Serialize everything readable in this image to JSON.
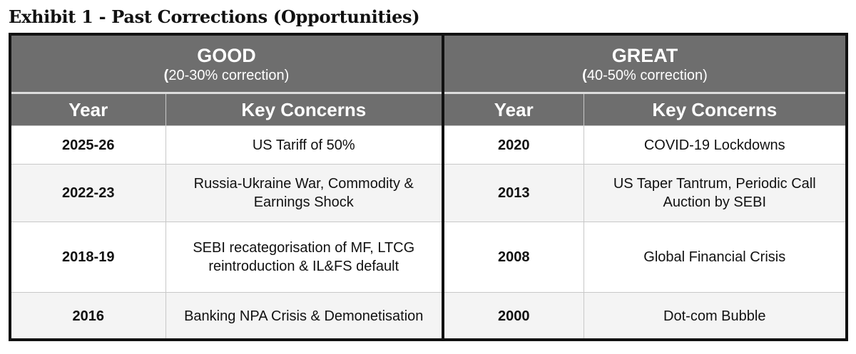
{
  "title": "Exhibit 1 - Past Corrections (Opportunities)",
  "panels": [
    {
      "category": "GOOD",
      "subtitle_open": "(",
      "subtitle_rest": "20-30% correction)",
      "col_year": "Year",
      "col_concerns": "Key Concerns",
      "rows": [
        {
          "year": "2025-26",
          "concerns": "US Tariff of 50%"
        },
        {
          "year": "2022-23",
          "concerns": "Russia-Ukraine War, Commodity & Earnings Shock"
        },
        {
          "year": "2018-19",
          "concerns": "SEBI recategorisation of MF, LTCG reintroduction & IL&FS default"
        },
        {
          "year": "2016",
          "concerns": "Banking NPA Crisis & Demonetisation"
        }
      ]
    },
    {
      "category": "GREAT",
      "subtitle_open": "(",
      "subtitle_rest": "40-50% correction)",
      "col_year": "Year",
      "col_concerns": "Key Concerns",
      "rows": [
        {
          "year": "2020",
          "concerns": "COVID-19 Lockdowns"
        },
        {
          "year": "2013",
          "concerns": "US Taper Tantrum, Periodic Call Auction by SEBI"
        },
        {
          "year": "2008",
          "concerns": "Global Financial Crisis"
        },
        {
          "year": "2000",
          "concerns": "Dot-com Bubble"
        }
      ]
    }
  ]
}
